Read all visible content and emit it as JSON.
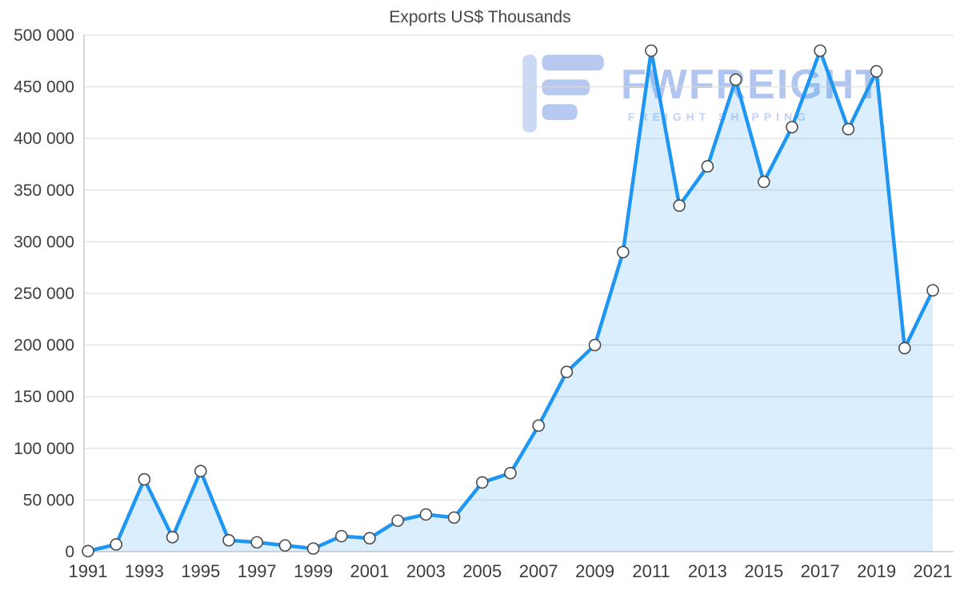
{
  "watermark": {
    "brand": "FWFREIGHT",
    "tagline": "FREIGHT SHIPPING",
    "brand_color": "#b0c5ef",
    "tagline_color": "#c3d2f3"
  },
  "chart_data": {
    "type": "area",
    "title": "Exports US$ Thousands",
    "xlabel": "",
    "ylabel": "",
    "x": [
      1991,
      1992,
      1993,
      1994,
      1995,
      1996,
      1997,
      1998,
      1999,
      2000,
      2001,
      2002,
      2003,
      2004,
      2005,
      2006,
      2007,
      2008,
      2009,
      2010,
      2011,
      2012,
      2013,
      2014,
      2015,
      2016,
      2017,
      2018,
      2019,
      2020,
      2021
    ],
    "values": [
      500,
      7000,
      70000,
      14000,
      78000,
      11000,
      9000,
      6000,
      3000,
      15000,
      13000,
      30000,
      36000,
      33000,
      67000,
      76000,
      122000,
      174000,
      200000,
      290000,
      485000,
      335000,
      373000,
      457000,
      358000,
      411000,
      485000,
      409000,
      465000,
      197000,
      253000
    ],
    "ylim": [
      0,
      500000
    ],
    "y_ticks": [
      0,
      50000,
      100000,
      150000,
      200000,
      250000,
      300000,
      350000,
      400000,
      450000,
      500000
    ],
    "y_tick_labels": [
      "0",
      "50 000",
      "100 000",
      "150 000",
      "200 000",
      "250 000",
      "300 000",
      "350 000",
      "400 000",
      "450 000",
      "500 000"
    ],
    "x_tick_labels": [
      "1991",
      "1993",
      "1995",
      "1997",
      "1999",
      "2001",
      "2003",
      "2005",
      "2007",
      "2009",
      "2011",
      "2013",
      "2015",
      "2017",
      "2019",
      "2021"
    ],
    "grid": true,
    "legend": "none",
    "line_color": "#1e96f2",
    "fill_color": "rgba(33, 150, 243, 0.16)",
    "marker_fill": "#ffffff",
    "marker_stroke": "#4a4a4a",
    "grid_color": "#dadada",
    "axis_color": "#b0b0b0",
    "label_color": "#3d3d3d"
  }
}
